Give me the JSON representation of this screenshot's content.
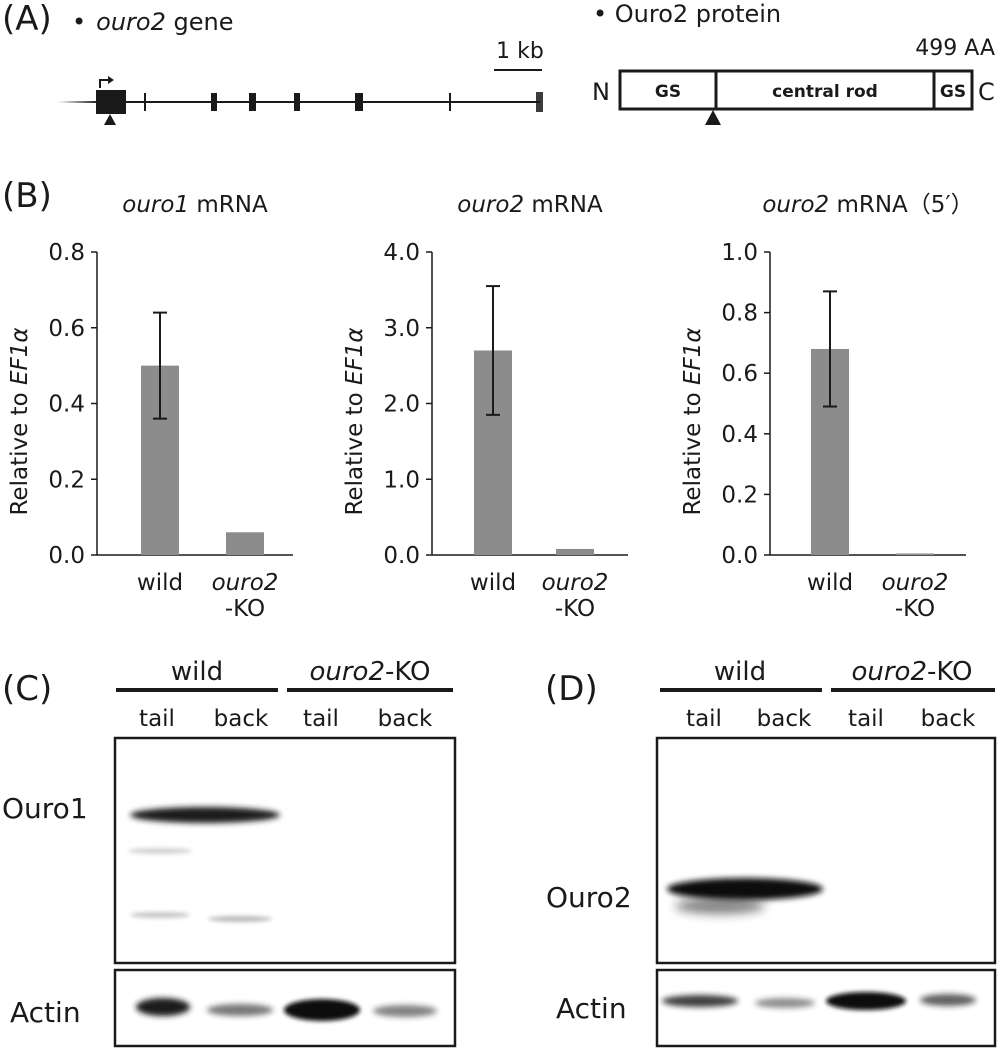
{
  "panelA": {
    "label": "(A)",
    "gene_bullet": "•",
    "gene_name": "ouro2",
    "gene_word": " gene",
    "scale_label": "1 kb",
    "protein_title": "• Ouro2 protein",
    "length": "499 AA",
    "n_term": "N",
    "c_term": "C",
    "domain_gs1": "GS",
    "domain_rod": "central rod",
    "domain_gs2": "GS"
  },
  "panelB": {
    "label": "(B)",
    "ylabel_prefix": "Relative to ",
    "ylabel_gene": "EF1α",
    "categories": [
      {
        "line1": "wild",
        "line2": ""
      },
      {
        "line1": "ouro2",
        "line2": "-KO"
      }
    ]
  },
  "chart_data": [
    {
      "type": "bar",
      "title_italic": "ouro1",
      "title_rest": " mRNA",
      "ylabel": "Relative to EF1α",
      "categories": [
        "wild",
        "ouro2-KO"
      ],
      "values": [
        0.5,
        0.06
      ],
      "error": [
        0.14,
        0
      ],
      "ylim": [
        0,
        0.8
      ],
      "ticks": [
        "0.0",
        "0.2",
        "0.4",
        "0.6",
        "0.8"
      ],
      "tick_values": [
        0,
        0.2,
        0.4,
        0.6,
        0.8
      ],
      "bar_color": "#8c8c8c"
    },
    {
      "type": "bar",
      "title_italic": "ouro2",
      "title_rest": " mRNA",
      "ylabel": "Relative to EF1α",
      "categories": [
        "wild",
        "ouro2-KO"
      ],
      "values": [
        2.7,
        0.08
      ],
      "error": [
        0.85,
        0
      ],
      "ylim": [
        0,
        4.0
      ],
      "ticks": [
        "0.0",
        "1.0",
        "2.0",
        "3.0",
        "4.0"
      ],
      "tick_values": [
        0,
        1,
        2,
        3,
        4
      ],
      "bar_color": "#8c8c8c"
    },
    {
      "type": "bar",
      "title_italic": "ouro2",
      "title_rest": " mRNA（5′）",
      "ylabel": "Relative to EF1α",
      "categories": [
        "wild",
        "ouro2-KO"
      ],
      "values": [
        0.68,
        0.005
      ],
      "error": [
        0.19,
        0
      ],
      "ylim": [
        0,
        1.0
      ],
      "ticks": [
        "0.0",
        "0.2",
        "0.4",
        "0.6",
        "0.8",
        "1.0"
      ],
      "tick_values": [
        0,
        0.2,
        0.4,
        0.6,
        0.8,
        1.0
      ],
      "bar_color": "#8c8c8c"
    }
  ],
  "panelC": {
    "label": "(C)",
    "group_wild": "wild",
    "group_ko_italic": "ouro2",
    "group_ko_rest": "-KO",
    "lanes": [
      "tail",
      "back",
      "tail",
      "back"
    ],
    "blot_top": "Ouro1",
    "blot_bottom": "Actin"
  },
  "panelD": {
    "label": "(D)",
    "group_wild": "wild",
    "group_ko_italic": "ouro2",
    "group_ko_rest": "-KO",
    "lanes": [
      "tail",
      "back",
      "tail",
      "back"
    ],
    "blot_top": "Ouro2",
    "blot_bottom": "Actin"
  }
}
